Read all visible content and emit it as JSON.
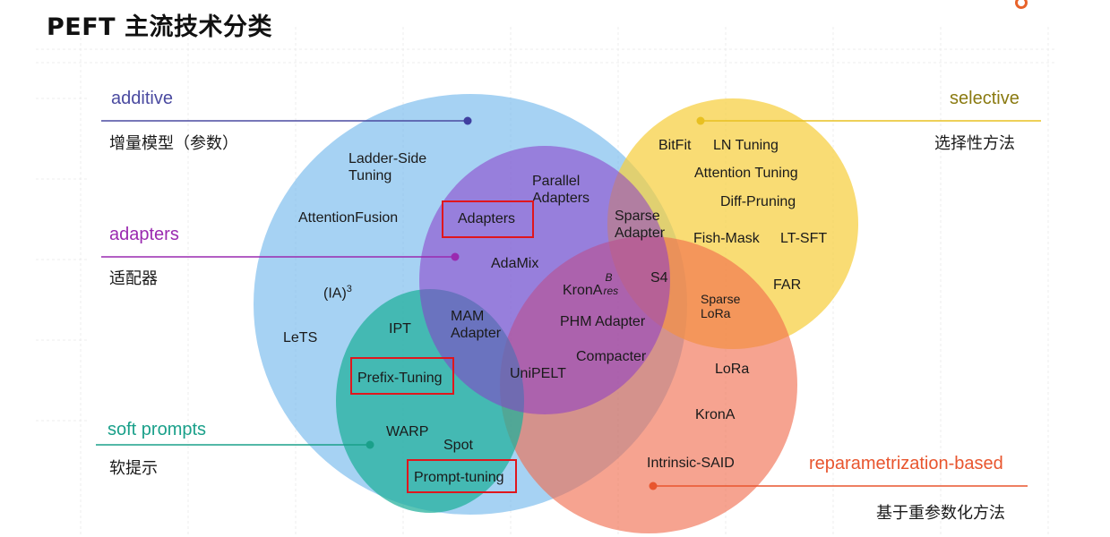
{
  "title": "PEFT 主流技术分类",
  "colors": {
    "additive": "#4a4aa0",
    "adapters": "#9a2ab0",
    "selective": "#8a7a10",
    "soft_prompts": "#1aa08a",
    "reparam": "#e8552e",
    "highlight_box": "#e0161d"
  },
  "categories": {
    "additive": {
      "en": "additive",
      "zh": "增量模型（参数）"
    },
    "adapters": {
      "en": "adapters",
      "zh": "适配器"
    },
    "selective": {
      "en": "selective",
      "zh": "选择性方法"
    },
    "soft_prompts": {
      "en": "soft prompts",
      "zh": "软提示"
    },
    "reparam": {
      "en": "reparametrization-based",
      "zh": "基于重参数化方法"
    }
  },
  "methods": {
    "ladder_side": "Ladder-Side\nTuning",
    "attention_fusion": "AttentionFusion",
    "ia3_base": "(IA)",
    "ia3_sup": "3",
    "lets": "LeTS",
    "ipt": "IPT",
    "prefix_tuning": "Prefix-Tuning",
    "warp": "WARP",
    "spot": "Spot",
    "prompt_tuning": "Prompt-tuning",
    "parallel_adapters": "Parallel\nAdapters",
    "adapters": "Adapters",
    "adamix": "AdaMix",
    "mam_adapter": "MAM\nAdapter",
    "unipelt": "UniPELT",
    "krona_base": "KronA",
    "krona_sup": "B",
    "krona_sub": "res",
    "phm_adapter": "PHM Adapter",
    "compacter": "Compacter",
    "sparse_adapter": "Sparse\nAdapter",
    "s4": "S4",
    "bitfit": "BitFit",
    "ln_tuning": "LN Tuning",
    "attention_tuning": "Attention Tuning",
    "diff_pruning": "Diff-Pruning",
    "fish_mask": "Fish-Mask",
    "lt_sft": "LT-SFT",
    "far": "FAR",
    "sparse_lora": "Sparse\nLoRa",
    "lora": "LoRa",
    "krona": "KronA",
    "intrinsic_said": "Intrinsic-SAID"
  }
}
